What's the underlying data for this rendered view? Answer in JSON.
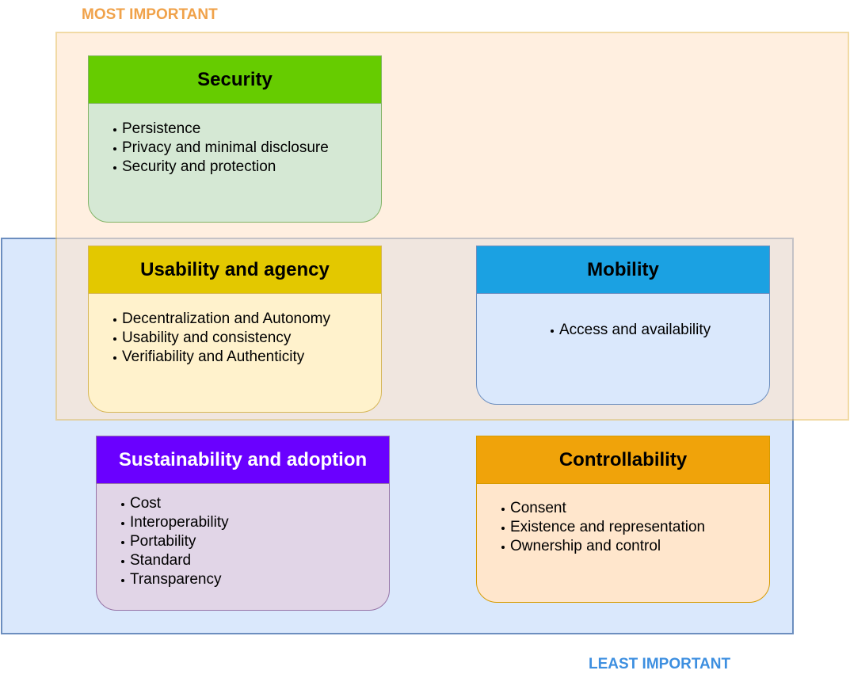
{
  "labels": {
    "most_important": "MOST IMPORTANT",
    "least_important": "LEAST IMPORTANT"
  },
  "colors": {
    "most_important_text": "#f0a24a",
    "least_important_text": "#3d8fe0",
    "most_region_fill": "#ffe6cc",
    "most_region_border": "#e9c26a",
    "least_region_fill": "#dae8fc",
    "least_region_border": "#6c8ebf"
  },
  "cards": [
    {
      "id": "security",
      "title": "Security",
      "header_color": "#66cc00",
      "header_text_color": "#000000",
      "body_color": "#d5e8d4",
      "border_color": "#82b366",
      "items": [
        "Persistence",
        "Privacy and minimal disclosure",
        "Security and protection"
      ]
    },
    {
      "id": "usability",
      "title": "Usability and agency",
      "header_color": "#e3c800",
      "header_text_color": "#000000",
      "body_color": "#fff2cc",
      "border_color": "#d6b656",
      "items": [
        "Decentralization and Autonomy",
        "Usability and consistency",
        "Verifiability and Authenticity"
      ]
    },
    {
      "id": "mobility",
      "title": "Mobility",
      "header_color": "#1ba1e2",
      "header_text_color": "#000000",
      "body_color": "#dae8fc",
      "border_color": "#6c8ebf",
      "items": [
        "Access and availability"
      ]
    },
    {
      "id": "sustainability",
      "title": "Sustainability and adoption",
      "header_color": "#6a00ff",
      "header_text_color": "#ffffff",
      "body_color": "#e1d5e7",
      "border_color": "#9673a6",
      "items": [
        "Cost",
        "Interoperability",
        "Portability",
        "Standard",
        "Transparency"
      ]
    },
    {
      "id": "controllability",
      "title": "Controllability",
      "header_color": "#f0a30a",
      "header_text_color": "#000000",
      "body_color": "#ffe6cc",
      "border_color": "#d79b00",
      "items": [
        "Consent",
        "Existence and representation",
        "Ownership and control"
      ]
    }
  ]
}
